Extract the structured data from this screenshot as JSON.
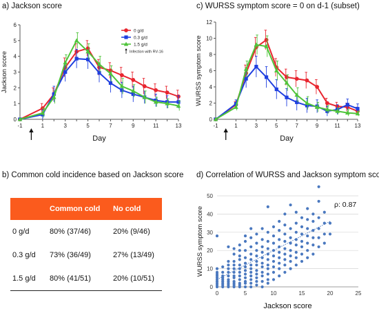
{
  "panels": {
    "a_title": "a) Jackson score",
    "c_title": "c) WURSS symptom score = 0 on d-1 (subset)",
    "b_title": "b) Common cold incidence based on Jackson score",
    "d_title": "d) Correlation of WURSS and Jackson symptom scores"
  },
  "colors": {
    "dose_0": "#e8252f",
    "dose_03": "#1f3fe0",
    "dose_15": "#4fc43a",
    "scatter": "#4a78bf",
    "table_header": "#fb5b1d"
  },
  "chart_data": [
    {
      "type": "line",
      "title": "a) Jackson score",
      "xlabel": "Day",
      "ylabel": "Jackson score",
      "x": [
        -1,
        1,
        2,
        3,
        4,
        5,
        6,
        7,
        8,
        9,
        10,
        11,
        12,
        13
      ],
      "xticks": [
        "-1",
        "1",
        "3",
        "5",
        "7",
        "9",
        "11",
        "13"
      ],
      "xtick_values": [
        -1,
        1,
        3,
        5,
        7,
        9,
        11,
        13
      ],
      "yticks": [
        "0",
        "1",
        "2",
        "3",
        "4",
        "5",
        "6"
      ],
      "ylim": [
        0,
        6
      ],
      "series": [
        {
          "name": "0 g/d",
          "color": "#e8252f",
          "marker": "circle",
          "values": [
            0,
            0.7,
            1.6,
            3.3,
            4.3,
            4.5,
            3.3,
            3.1,
            2.8,
            2.5,
            2.1,
            1.85,
            1.7,
            1.45
          ],
          "err": [
            0,
            0.3,
            0.4,
            0.6,
            0.5,
            0.5,
            0.5,
            0.5,
            0.5,
            0.5,
            0.5,
            0.4,
            0.4,
            0.4
          ]
        },
        {
          "name": "0.3 g/d",
          "color": "#1f3fe0",
          "marker": "square",
          "values": [
            0,
            0.3,
            1.6,
            3.0,
            3.85,
            3.8,
            2.95,
            2.3,
            1.85,
            1.6,
            1.4,
            1.2,
            1.1,
            1.1
          ],
          "err": [
            0,
            0.3,
            0.5,
            0.6,
            0.6,
            0.6,
            0.6,
            0.6,
            0.5,
            0.5,
            0.4,
            0.4,
            0.4,
            0.4
          ]
        },
        {
          "name": "1.5 g/d",
          "color": "#4fc43a",
          "marker": "triangle",
          "values": [
            0,
            0.4,
            1.4,
            3.6,
            5.0,
            4.3,
            3.5,
            2.9,
            2.1,
            1.8,
            1.4,
            1.1,
            1.0,
            0.85
          ],
          "err": [
            0,
            0.3,
            0.4,
            0.5,
            0.5,
            0.5,
            0.5,
            0.5,
            0.5,
            0.4,
            0.4,
            0.3,
            0.3,
            0.3
          ]
        }
      ],
      "legend_position": "top-right",
      "annotation": "Infection with RV-16",
      "annotation_day": 0
    },
    {
      "type": "line",
      "title": "c) WURSS symptom score = 0 on d-1 (subset)",
      "xlabel": "Day",
      "ylabel": "WURSS symptom score",
      "x": [
        -1,
        1,
        2,
        3,
        4,
        5,
        6,
        7,
        8,
        9,
        10,
        11,
        12,
        13
      ],
      "xticks": [
        "-1",
        "1",
        "3",
        "5",
        "7",
        "9",
        "11",
        "13"
      ],
      "xtick_values": [
        -1,
        1,
        3,
        5,
        7,
        9,
        11,
        13
      ],
      "yticks": [
        "0",
        "2",
        "4",
        "6",
        "8",
        "10",
        "12"
      ],
      "ylim": [
        0,
        12
      ],
      "series": [
        {
          "name": "0 g/d",
          "color": "#e8252f",
          "marker": "circle",
          "values": [
            0,
            1.8,
            5.7,
            8.9,
            9.8,
            6.4,
            5.2,
            5.0,
            4.8,
            4.0,
            2.0,
            1.6,
            1.5,
            1.0
          ],
          "err": [
            0,
            0.4,
            1.0,
            1.2,
            1.2,
            1.1,
            1.0,
            1.0,
            1.0,
            0.9,
            0.6,
            0.5,
            0.5,
            0.5
          ]
        },
        {
          "name": "0.3 g/d",
          "color": "#1f3fe0",
          "marker": "square",
          "values": [
            0,
            1.9,
            5.0,
            6.5,
            5.2,
            3.7,
            2.7,
            2.1,
            1.7,
            1.6,
            1.0,
            1.2,
            1.8,
            1.3
          ],
          "err": [
            0,
            0.5,
            1.1,
            1.3,
            1.3,
            1.2,
            1.1,
            1.0,
            0.9,
            0.8,
            0.6,
            0.6,
            0.7,
            0.6
          ]
        },
        {
          "name": "1.5 g/d",
          "color": "#4fc43a",
          "marker": "triangle",
          "values": [
            0,
            1.5,
            6.2,
            9.2,
            9.0,
            6.0,
            4.5,
            3.0,
            2.0,
            1.5,
            1.2,
            1.0,
            0.8,
            0.7
          ],
          "err": [
            0,
            0.4,
            1.0,
            1.2,
            1.3,
            1.2,
            1.0,
            0.9,
            0.8,
            0.6,
            0.5,
            0.4,
            0.4,
            0.3
          ]
        }
      ]
    },
    {
      "type": "table",
      "title": "b) Common cold incidence based on Jackson score",
      "columns": [
        "",
        "Common cold",
        "No cold"
      ],
      "rows": [
        [
          "0 g/d",
          "80% (37/46)",
          "20% (9/46)"
        ],
        [
          "0.3 g/d",
          "73% (36/49)",
          "27% (13/49)"
        ],
        [
          "1.5 g/d",
          "80% (41/51)",
          "20% (10/51)"
        ]
      ]
    },
    {
      "type": "scatter",
      "title": "d) Correlation of WURSS and Jackson symptom scores",
      "xlabel": "Jackson score",
      "ylabel": "WURSS symptom score",
      "xlim": [
        0,
        25
      ],
      "ylim": [
        0,
        50
      ],
      "xticks": [
        "0",
        "5",
        "10",
        "15",
        "20",
        "25"
      ],
      "yticks": [
        "0",
        "10",
        "20",
        "30",
        "40",
        "50"
      ],
      "annotation": "ρ: 0.87",
      "trendline": {
        "x": [
          0,
          20
        ],
        "y": [
          4,
          36
        ]
      },
      "points": [
        [
          0,
          0
        ],
        [
          0,
          1
        ],
        [
          0,
          2
        ],
        [
          0,
          3
        ],
        [
          0,
          4
        ],
        [
          0,
          5
        ],
        [
          0,
          6
        ],
        [
          0,
          7
        ],
        [
          0,
          8
        ],
        [
          0,
          10
        ],
        [
          0,
          28
        ],
        [
          1,
          0
        ],
        [
          1,
          1
        ],
        [
          1,
          2
        ],
        [
          1,
          3
        ],
        [
          1,
          4
        ],
        [
          1,
          5
        ],
        [
          1,
          6
        ],
        [
          1,
          8
        ],
        [
          1,
          11
        ],
        [
          2,
          0
        ],
        [
          2,
          1
        ],
        [
          2,
          2
        ],
        [
          2,
          3
        ],
        [
          2,
          4
        ],
        [
          2,
          6
        ],
        [
          2,
          8
        ],
        [
          2,
          10
        ],
        [
          2,
          12
        ],
        [
          2,
          14
        ],
        [
          2,
          22
        ],
        [
          3,
          0
        ],
        [
          3,
          1
        ],
        [
          3,
          2
        ],
        [
          3,
          3
        ],
        [
          3,
          5
        ],
        [
          3,
          6
        ],
        [
          3,
          8
        ],
        [
          3,
          10
        ],
        [
          3,
          12
        ],
        [
          3,
          14
        ],
        [
          3,
          18
        ],
        [
          3,
          21
        ],
        [
          4,
          0
        ],
        [
          4,
          1
        ],
        [
          4,
          2
        ],
        [
          4,
          4
        ],
        [
          4,
          6
        ],
        [
          4,
          8
        ],
        [
          4,
          10
        ],
        [
          4,
          12
        ],
        [
          4,
          15
        ],
        [
          4,
          17
        ],
        [
          4,
          20
        ],
        [
          4,
          23
        ],
        [
          5,
          0
        ],
        [
          5,
          2
        ],
        [
          5,
          3
        ],
        [
          5,
          5
        ],
        [
          5,
          7
        ],
        [
          5,
          9
        ],
        [
          5,
          11
        ],
        [
          5,
          13
        ],
        [
          5,
          16
        ],
        [
          5,
          20
        ],
        [
          5,
          25
        ],
        [
          5,
          28
        ],
        [
          6,
          0
        ],
        [
          6,
          2
        ],
        [
          6,
          4
        ],
        [
          6,
          6
        ],
        [
          6,
          8
        ],
        [
          6,
          10
        ],
        [
          6,
          12
        ],
        [
          6,
          15
        ],
        [
          6,
          18
        ],
        [
          6,
          22
        ],
        [
          6,
          27
        ],
        [
          6,
          32
        ],
        [
          7,
          1
        ],
        [
          7,
          3
        ],
        [
          7,
          5
        ],
        [
          7,
          7
        ],
        [
          7,
          9
        ],
        [
          7,
          12
        ],
        [
          7,
          14
        ],
        [
          7,
          17
        ],
        [
          7,
          20
        ],
        [
          7,
          24
        ],
        [
          7,
          29
        ],
        [
          8,
          0
        ],
        [
          8,
          3
        ],
        [
          8,
          6
        ],
        [
          8,
          8
        ],
        [
          8,
          11
        ],
        [
          8,
          13
        ],
        [
          8,
          16
        ],
        [
          8,
          19
        ],
        [
          8,
          22
        ],
        [
          8,
          26
        ],
        [
          8,
          32
        ],
        [
          9,
          2
        ],
        [
          9,
          4
        ],
        [
          9,
          7
        ],
        [
          9,
          10
        ],
        [
          9,
          12
        ],
        [
          9,
          15
        ],
        [
          9,
          18
        ],
        [
          9,
          21
        ],
        [
          9,
          25
        ],
        [
          9,
          30
        ],
        [
          9,
          44
        ],
        [
          10,
          4
        ],
        [
          10,
          8
        ],
        [
          10,
          11
        ],
        [
          10,
          14
        ],
        [
          10,
          17
        ],
        [
          10,
          20
        ],
        [
          10,
          24
        ],
        [
          10,
          28
        ],
        [
          10,
          33
        ],
        [
          11,
          6
        ],
        [
          11,
          10
        ],
        [
          11,
          13
        ],
        [
          11,
          16
        ],
        [
          11,
          19
        ],
        [
          11,
          22
        ],
        [
          11,
          26
        ],
        [
          11,
          31
        ],
        [
          11,
          36
        ],
        [
          12,
          8
        ],
        [
          12,
          12
        ],
        [
          12,
          15
        ],
        [
          12,
          18
        ],
        [
          12,
          21
        ],
        [
          12,
          25
        ],
        [
          12,
          29
        ],
        [
          12,
          34
        ],
        [
          12,
          40
        ],
        [
          13,
          10
        ],
        [
          13,
          14
        ],
        [
          13,
          17
        ],
        [
          13,
          20
        ],
        [
          13,
          24
        ],
        [
          13,
          27
        ],
        [
          13,
          32
        ],
        [
          13,
          45
        ],
        [
          14,
          12
        ],
        [
          14,
          16
        ],
        [
          14,
          19
        ],
        [
          14,
          23
        ],
        [
          14,
          26
        ],
        [
          14,
          30
        ],
        [
          14,
          35
        ],
        [
          14,
          41
        ],
        [
          15,
          14
        ],
        [
          15,
          18
        ],
        [
          15,
          22
        ],
        [
          15,
          25
        ],
        [
          15,
          29
        ],
        [
          15,
          33
        ],
        [
          15,
          38
        ],
        [
          16,
          16
        ],
        [
          16,
          20
        ],
        [
          16,
          24
        ],
        [
          16,
          28
        ],
        [
          16,
          32
        ],
        [
          16,
          37
        ],
        [
          16,
          43
        ],
        [
          17,
          18
        ],
        [
          17,
          23
        ],
        [
          17,
          27
        ],
        [
          17,
          31
        ],
        [
          17,
          36
        ],
        [
          17,
          40
        ],
        [
          18,
          22
        ],
        [
          18,
          27
        ],
        [
          18,
          32
        ],
        [
          18,
          38
        ],
        [
          18,
          47
        ],
        [
          18,
          55
        ],
        [
          19,
          24
        ],
        [
          19,
          29
        ],
        [
          19,
          35
        ],
        [
          19,
          41
        ],
        [
          20,
          29
        ],
        [
          20,
          35
        ]
      ]
    }
  ]
}
